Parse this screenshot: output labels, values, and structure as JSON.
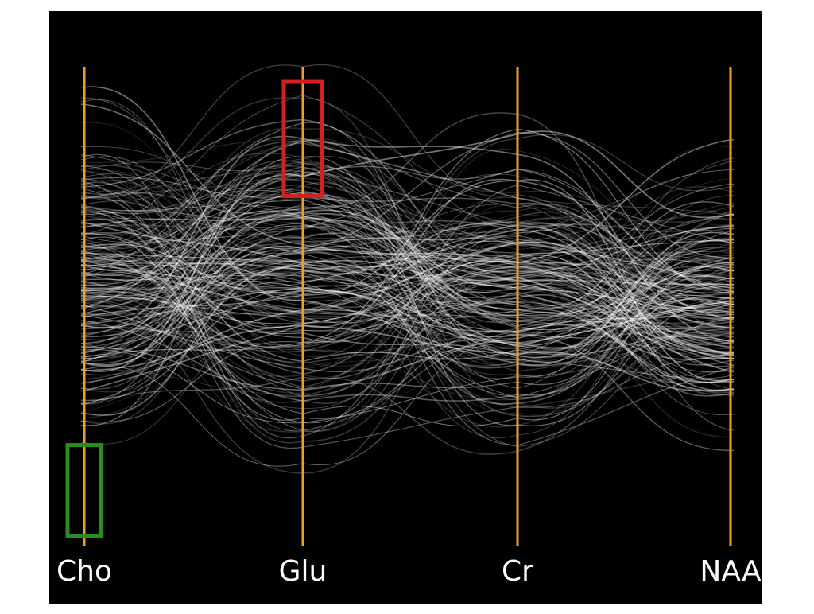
{
  "chart_data": {
    "type": "parallel-coordinates",
    "axes": [
      "Cho",
      "Glu",
      "Cr",
      "NAA"
    ],
    "axis_color": "#f0a020",
    "line_color": "#ffffff",
    "background_color": "#000000",
    "grid": false,
    "legend": "none",
    "value_range": [
      0,
      1
    ],
    "highlight_boxes": [
      {
        "name": "glu-high-range",
        "axis": "Glu",
        "color": "#d42020",
        "range": [
          0.73,
          0.97
        ]
      },
      {
        "name": "cho-low-range",
        "axis": "Cho",
        "color": "#2e8b22",
        "range": [
          0.02,
          0.21
        ]
      }
    ],
    "series_summary": {
      "count": 200,
      "means": [
        0.55,
        0.55,
        0.52,
        0.5
      ],
      "spreads": [
        0.16,
        0.2,
        0.14,
        0.13
      ]
    }
  }
}
